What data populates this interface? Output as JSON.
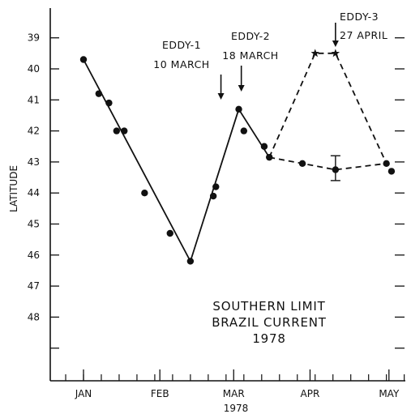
{
  "chart_data": {
    "type": "line",
    "title_lines": [
      "SOUTHERN LIMIT",
      "BRAZIL CURRENT",
      "1978"
    ],
    "xlabel": "1978",
    "ylabel": "LATITUDE",
    "x_unit": "day of year 1978",
    "ylim": [
      50,
      38.5
    ],
    "xlim": [
      8,
      150
    ],
    "x_tick_labels": [
      {
        "label": "JAN",
        "x": 15
      },
      {
        "label": "FEB",
        "x": 45
      },
      {
        "label": "MAR",
        "x": 74
      },
      {
        "label": "APR",
        "x": 104
      },
      {
        "label": "MAY",
        "x": 135
      }
    ],
    "y_tick_labels": [
      "39",
      "40",
      "41",
      "42",
      "43",
      "44",
      "45",
      "46",
      "47",
      "48"
    ],
    "series": [
      {
        "style": "solid",
        "x": [
          15,
          57,
          76,
          88
        ],
        "y": [
          39.7,
          46.2,
          41.3,
          42.85
        ]
      },
      {
        "style": "dashed",
        "x": [
          88,
          106,
          114,
          134,
          136
        ],
        "y": [
          42.85,
          39.5,
          39.5,
          43.05,
          43.3
        ]
      },
      {
        "style": "dashed",
        "x": [
          88,
          101,
          114,
          134
        ],
        "y": [
          42.85,
          43.05,
          43.25,
          43.05
        ]
      }
    ],
    "points": [
      {
        "x": 15,
        "y": 39.7,
        "marker": "dot"
      },
      {
        "x": 21,
        "y": 40.8,
        "marker": "dot"
      },
      {
        "x": 25,
        "y": 41.1,
        "marker": "dot"
      },
      {
        "x": 28,
        "y": 42.0,
        "marker": "dot"
      },
      {
        "x": 31,
        "y": 42.0,
        "marker": "dot"
      },
      {
        "x": 39,
        "y": 44.0,
        "marker": "dot"
      },
      {
        "x": 49,
        "y": 45.3,
        "marker": "dot"
      },
      {
        "x": 57,
        "y": 46.2,
        "marker": "dot"
      },
      {
        "x": 66,
        "y": 44.1,
        "marker": "dot"
      },
      {
        "x": 67,
        "y": 43.8,
        "marker": "dot"
      },
      {
        "x": 76,
        "y": 41.3,
        "marker": "dot"
      },
      {
        "x": 78,
        "y": 42.0,
        "marker": "dot"
      },
      {
        "x": 86,
        "y": 42.5,
        "marker": "dot"
      },
      {
        "x": 88,
        "y": 42.85,
        "marker": "dot"
      },
      {
        "x": 101,
        "y": 43.05,
        "marker": "dot"
      },
      {
        "x": 114,
        "y": 43.25,
        "marker": "dot",
        "err": [
          42.8,
          43.6
        ]
      },
      {
        "x": 134,
        "y": 43.05,
        "marker": "dot"
      },
      {
        "x": 136,
        "y": 43.3,
        "marker": "dot"
      },
      {
        "x": 106,
        "y": 39.5,
        "marker": "star"
      },
      {
        "x": 114,
        "y": 39.5,
        "marker": "star"
      }
    ],
    "annotations": [
      {
        "lines": [
          "EDDY-1",
          "10 MARCH"
        ],
        "arrow_x": 69
      },
      {
        "lines": [
          "EDDY-2",
          "18 MARCH"
        ],
        "arrow_x": 77
      },
      {
        "lines": [
          "EDDY-3",
          "27 APRIL"
        ],
        "arrow_x": 114
      }
    ],
    "grid": false,
    "legend": "none"
  }
}
